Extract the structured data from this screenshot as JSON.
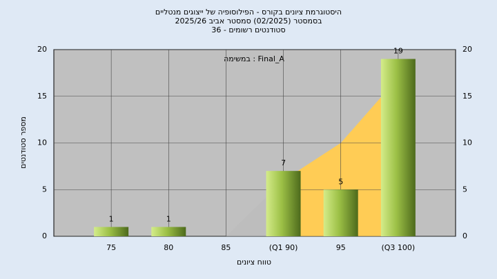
{
  "chart_data": {
    "type": "bar",
    "title": [
      "היסטוגרמת ציונים בקורס - הפילוסופיה של ייצוגים מנטליים",
      "בסמסטר  (02/2025)  סמסטר אביב 2025/26",
      "סטודנטים רשומים - 36"
    ],
    "annotation": "Final_A : במשימה",
    "x_label": "טווח ציונים",
    "y_label": "מספר סטודנטים",
    "categories": [
      "75",
      "80",
      "85",
      "(Q1 90)",
      "95",
      "(Q3 100)"
    ],
    "values": [
      1,
      1,
      0,
      7,
      5,
      19
    ],
    "value_labels": [
      "1",
      "1",
      null,
      "7",
      "5",
      "19"
    ],
    "area_values": [
      null,
      null,
      0,
      6,
      10,
      17
    ],
    "area_colors": [
      "#bdbdbd",
      "#ffcc55"
    ],
    "color": "#9cc046",
    "ylim": [
      0,
      20
    ],
    "yticks": [
      0,
      5,
      10,
      15,
      20
    ],
    "grid": true
  }
}
